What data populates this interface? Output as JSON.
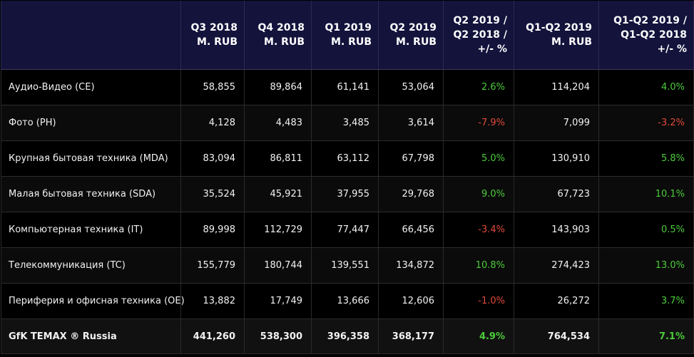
{
  "colors": {
    "header_bg": "#13133c",
    "row_bg": "#000000",
    "alt_row_bg": "#0b0b0b",
    "total_row_bg": "#111111",
    "positive": "#4ccc3a",
    "negative": "#e04a3a",
    "text": "#ffffff"
  },
  "chart_data": {
    "type": "table",
    "columns": [
      {
        "key": "category",
        "lines": [
          ""
        ]
      },
      {
        "key": "q3_2018",
        "lines": [
          "Q3 2018",
          "M. RUB"
        ]
      },
      {
        "key": "q4_2018",
        "lines": [
          "Q4 2018",
          "M. RUB"
        ]
      },
      {
        "key": "q1_2019",
        "lines": [
          "Q1 2019",
          "M. RUB"
        ]
      },
      {
        "key": "q2_2019",
        "lines": [
          "Q2 2019",
          "M. RUB"
        ]
      },
      {
        "key": "q2_yoy",
        "lines": [
          "Q2 2019 /",
          "Q2 2018 /",
          "+/- %"
        ]
      },
      {
        "key": "h1_2019",
        "lines": [
          "Q1-Q2 2019",
          "M. RUB"
        ]
      },
      {
        "key": "h1_yoy",
        "lines": [
          "Q1-Q2 2019 /",
          "Q1-Q2 2018",
          "+/- %"
        ]
      }
    ],
    "rows": [
      {
        "category": "Аудио-Видео (CE)",
        "q3_2018": "58,855",
        "q4_2018": "89,864",
        "q1_2019": "61,141",
        "q2_2019": "53,064",
        "q2_yoy": "2.6%",
        "h1_2019": "114,204",
        "h1_yoy": "4.0%",
        "total": false
      },
      {
        "category": "Фото (PH)",
        "q3_2018": "4,128",
        "q4_2018": "4,483",
        "q1_2019": "3,485",
        "q2_2019": "3,614",
        "q2_yoy": "-7.9%",
        "h1_2019": "7,099",
        "h1_yoy": "-3.2%",
        "total": false
      },
      {
        "category": "Крупная бытовая техника (MDA)",
        "q3_2018": "83,094",
        "q4_2018": "86,811",
        "q1_2019": "63,112",
        "q2_2019": "67,798",
        "q2_yoy": "5.0%",
        "h1_2019": "130,910",
        "h1_yoy": "5.8%",
        "total": false
      },
      {
        "category": "Малая бытовая техника (SDA)",
        "q3_2018": "35,524",
        "q4_2018": "45,921",
        "q1_2019": "37,955",
        "q2_2019": "29,768",
        "q2_yoy": "9.0%",
        "h1_2019": "67,723",
        "h1_yoy": "10.1%",
        "total": false
      },
      {
        "category": "Компьютерная техника (IT)",
        "q3_2018": "89,998",
        "q4_2018": "112,729",
        "q1_2019": "77,447",
        "q2_2019": "66,456",
        "q2_yoy": "-3.4%",
        "h1_2019": "143,903",
        "h1_yoy": "0.5%",
        "total": false
      },
      {
        "category": "Телекоммуникация (TC)",
        "q3_2018": "155,779",
        "q4_2018": "180,744",
        "q1_2019": "139,551",
        "q2_2019": "134,872",
        "q2_yoy": "10.8%",
        "h1_2019": "274,423",
        "h1_yoy": "13.0%",
        "total": false
      },
      {
        "category": "Периферия и офисная техника (OE)",
        "q3_2018": "13,882",
        "q4_2018": "17,749",
        "q1_2019": "13,666",
        "q2_2019": "12,606",
        "q2_yoy": "-1.0%",
        "h1_2019": "26,272",
        "h1_yoy": "3.7%",
        "total": false
      },
      {
        "category": "GfK TEMAX ® Russia",
        "q3_2018": "441,260",
        "q4_2018": "538,300",
        "q1_2019": "396,358",
        "q2_2019": "368,177",
        "q2_yoy": "4.9%",
        "h1_2019": "764,534",
        "h1_yoy": "7.1%",
        "total": true
      }
    ]
  }
}
